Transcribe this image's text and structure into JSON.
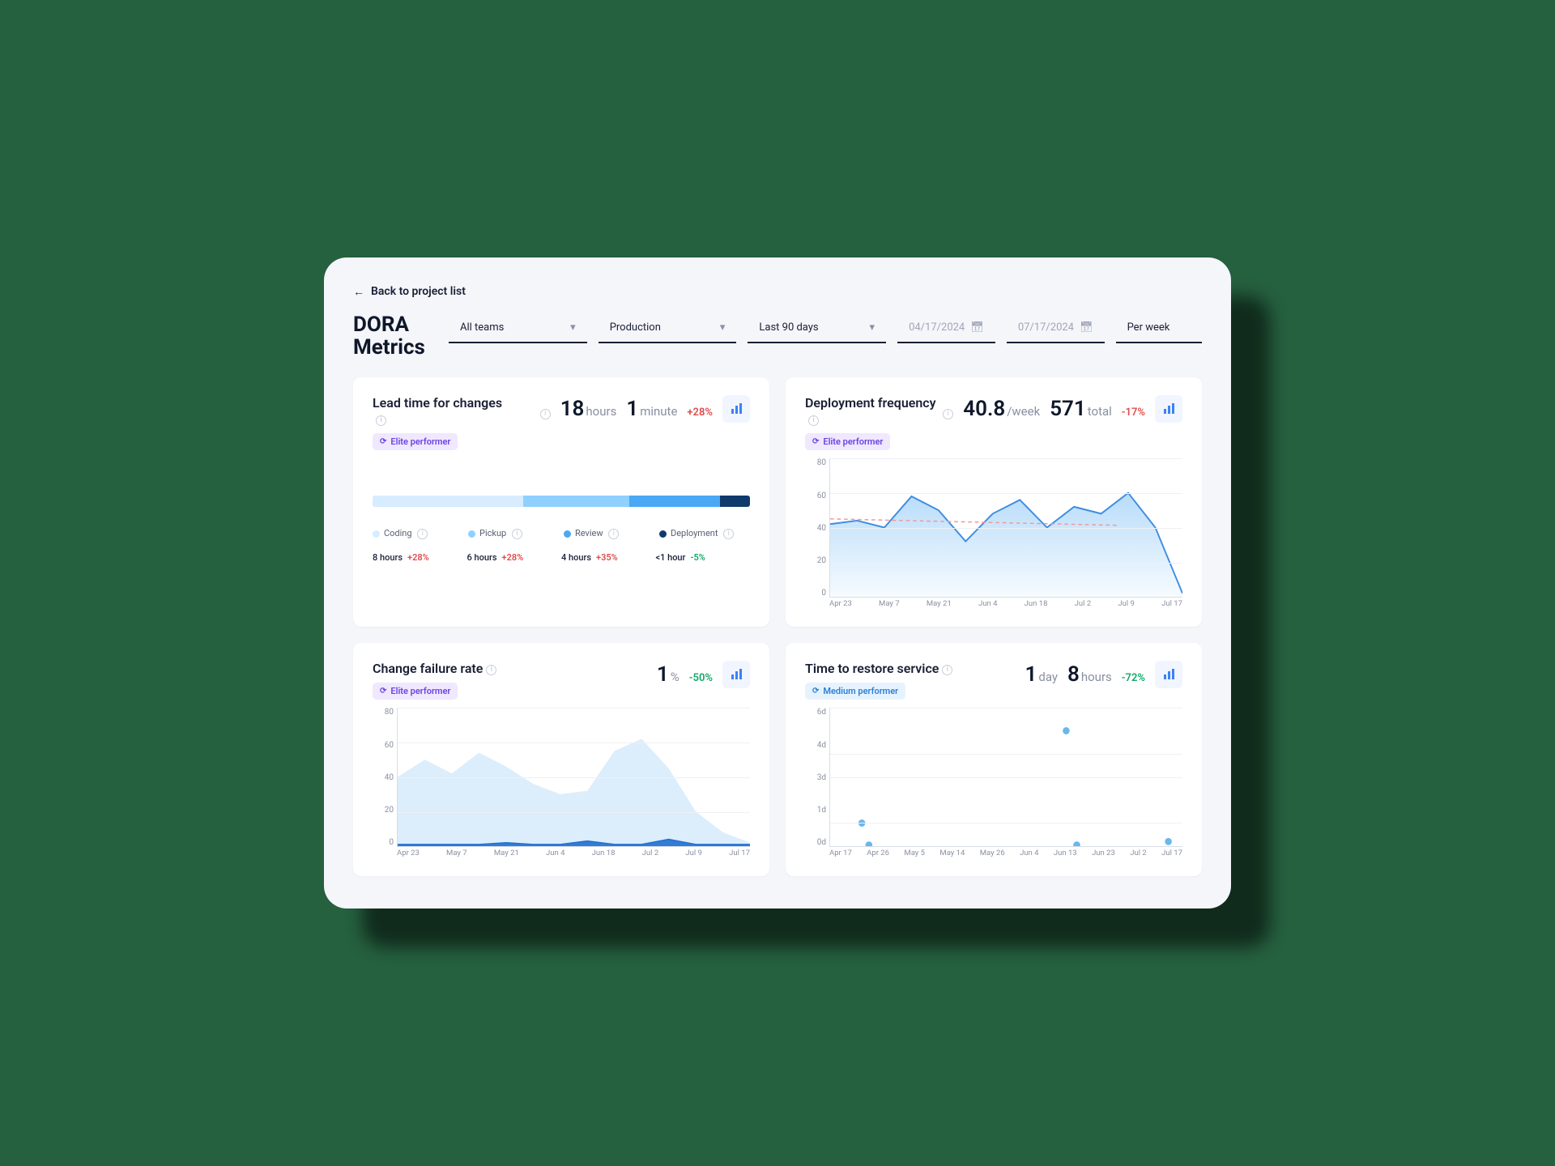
{
  "nav": {
    "back_label": "Back to project list"
  },
  "title": "DORA Metrics",
  "filters": {
    "team": "All teams",
    "env": "Production",
    "range": "Last 90 days",
    "date_from": "04/17/2024",
    "date_to": "07/17/2024",
    "granularity": "Per week"
  },
  "colors": {
    "bg_page": "#f4f6fa",
    "card_bg": "#ffffff",
    "text_primary": "#0f172a",
    "text_secondary": "#8a90a3",
    "accent_blue": "#3b82f6",
    "area_fill_top": "#b8dcfa",
    "area_fill_bottom": "#f2f9ff",
    "line_blue": "#3e8de0",
    "dashed_red": "#f09a9a",
    "delta_red": "#e04b4b",
    "delta_green": "#0fa968",
    "badge_elite_bg": "#efe8ff",
    "badge_elite_fg": "#6b42e0",
    "badge_medium_bg": "#e6f3ff",
    "badge_medium_fg": "#2a7fd6",
    "grid_line": "#eef0f4",
    "axis": "#d9dde6"
  },
  "leadtime": {
    "title": "Lead time for changes",
    "value1": "18",
    "unit1": "hours",
    "value2": "1",
    "unit2": "minute",
    "delta": "+28%",
    "delta_dir": "up",
    "badge": "Elite performer",
    "segments": [
      {
        "name": "Coding",
        "color": "#d7ecff",
        "pct": 40,
        "value": "8 hours",
        "delta": "+28%",
        "delta_dir": "up"
      },
      {
        "name": "Pickup",
        "color": "#8fd0ff",
        "pct": 28,
        "value": "6 hours",
        "delta": "+28%",
        "delta_dir": "up"
      },
      {
        "name": "Review",
        "color": "#4aa8f5",
        "pct": 24,
        "value": "4 hours",
        "delta": "+35%",
        "delta_dir": "up"
      },
      {
        "name": "Deployment",
        "color": "#0f3a6b",
        "pct": 8,
        "value": "<1 hour",
        "delta": "-5%",
        "delta_dir": "down"
      }
    ]
  },
  "deployfreq": {
    "title": "Deployment frequency",
    "value1": "40.8",
    "unit1": "/week",
    "value2": "571",
    "unit2": "total",
    "delta": "-17%",
    "delta_dir": "up",
    "badge": "Elite performer",
    "chart": {
      "type": "area",
      "ylim": [
        0,
        80
      ],
      "ytick_step": 20,
      "yticks": [
        "80",
        "60",
        "40",
        "20",
        "0"
      ],
      "xlabels": [
        "Apr 23",
        "May 7",
        "May 21",
        "Jun 4",
        "Jun 18",
        "Jul 2",
        "Jul 9",
        "Jul 17"
      ],
      "values": [
        42,
        44,
        40,
        58,
        50,
        32,
        48,
        56,
        40,
        52,
        48,
        60,
        40,
        2
      ],
      "baseline": 45,
      "line_color": "#3e8de0",
      "fill_top": "#b8dcfa",
      "fill_bottom": "#f6fbff",
      "dashed_color": "#f09a9a"
    }
  },
  "failrate": {
    "title": "Change failure rate",
    "value1": "1",
    "unit1": "%",
    "delta": "-50%",
    "delta_dir": "down",
    "badge": "Elite performer",
    "chart": {
      "type": "area",
      "ylim": [
        0,
        80
      ],
      "ytick_step": 20,
      "yticks": [
        "80",
        "60",
        "40",
        "20",
        "0"
      ],
      "xlabels": [
        "Apr 23",
        "May 7",
        "May 21",
        "Jun 4",
        "Jun 18",
        "Jul 2",
        "Jul 9",
        "Jul 17"
      ],
      "bg_values": [
        40,
        50,
        42,
        54,
        46,
        36,
        30,
        32,
        55,
        62,
        45,
        20,
        8,
        2
      ],
      "fg_values": [
        1,
        1,
        1,
        1,
        2,
        1,
        1,
        3,
        1,
        1,
        4,
        1,
        1,
        1
      ],
      "bg_fill": "#dcedfb",
      "fg_color": "#1f6fd1"
    }
  },
  "restore": {
    "title": "Time to restore service",
    "value1": "1",
    "unit1": "day",
    "value2": "8",
    "unit2": "hours",
    "delta": "-72%",
    "delta_dir": "down",
    "badge": "Medium performer",
    "chart": {
      "type": "scatter",
      "yticks": [
        "6d",
        "4d",
        "3d",
        "1d",
        "0d"
      ],
      "xlabels": [
        "Apr 17",
        "Apr 26",
        "May 5",
        "May 14",
        "May 26",
        "Jun 4",
        "Jun 13",
        "Jun 23",
        "Jul 2",
        "Jul 17"
      ],
      "points": [
        {
          "x": 0.09,
          "y": 1.0
        },
        {
          "x": 0.11,
          "y": 0.05
        },
        {
          "x": 0.67,
          "y": 5.0
        },
        {
          "x": 0.7,
          "y": 0.05
        },
        {
          "x": 0.96,
          "y": 0.2
        }
      ],
      "ymax": 6,
      "dot_color": "#6ab7ec"
    }
  }
}
